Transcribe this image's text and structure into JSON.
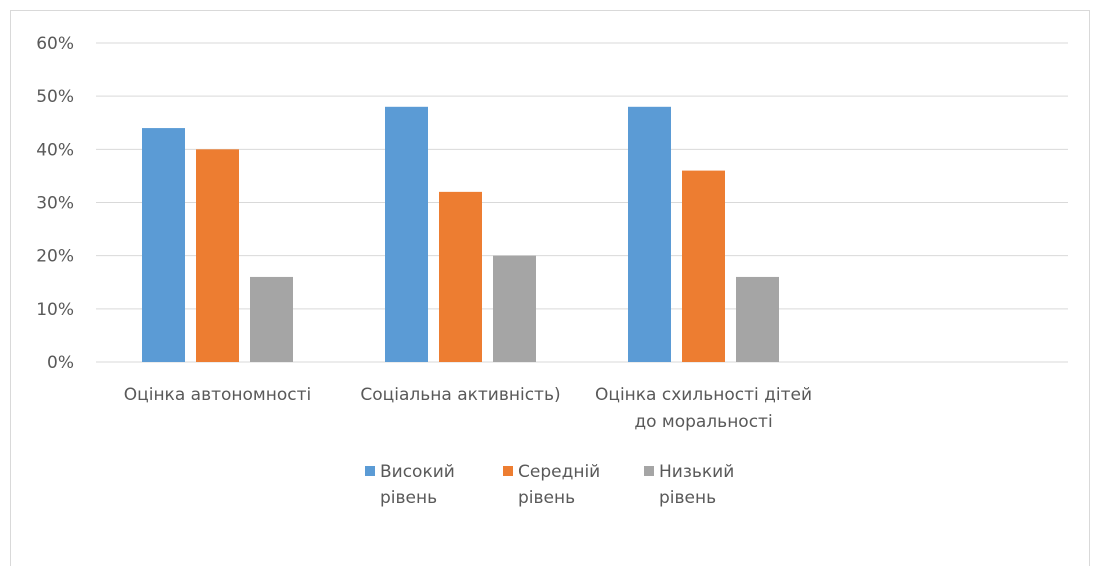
{
  "chart_data": {
    "type": "bar",
    "categories": [
      [
        "Оцінка автономності"
      ],
      [
        "Соціальна активність)"
      ],
      [
        "Оцінка схильності дітей",
        "до моральності"
      ],
      [
        ""
      ]
    ],
    "series": [
      {
        "name": [
          "Високий",
          "рівень"
        ],
        "color": "#5b9bd5",
        "values": [
          0.44,
          0.48,
          0.48,
          null
        ]
      },
      {
        "name": [
          "Середній",
          "рівень"
        ],
        "color": "#ed7d31",
        "values": [
          0.4,
          0.32,
          0.36,
          null
        ]
      },
      {
        "name": [
          "Низький",
          "рівень"
        ],
        "color": "#a5a5a5",
        "values": [
          0.16,
          0.2,
          0.16,
          null
        ]
      }
    ],
    "ylim": [
      0,
      0.6
    ],
    "yticks": [
      "0%",
      "10%",
      "20%",
      "30%",
      "40%",
      "50%",
      "60%"
    ],
    "grid": true,
    "legend_position": "bottom"
  }
}
